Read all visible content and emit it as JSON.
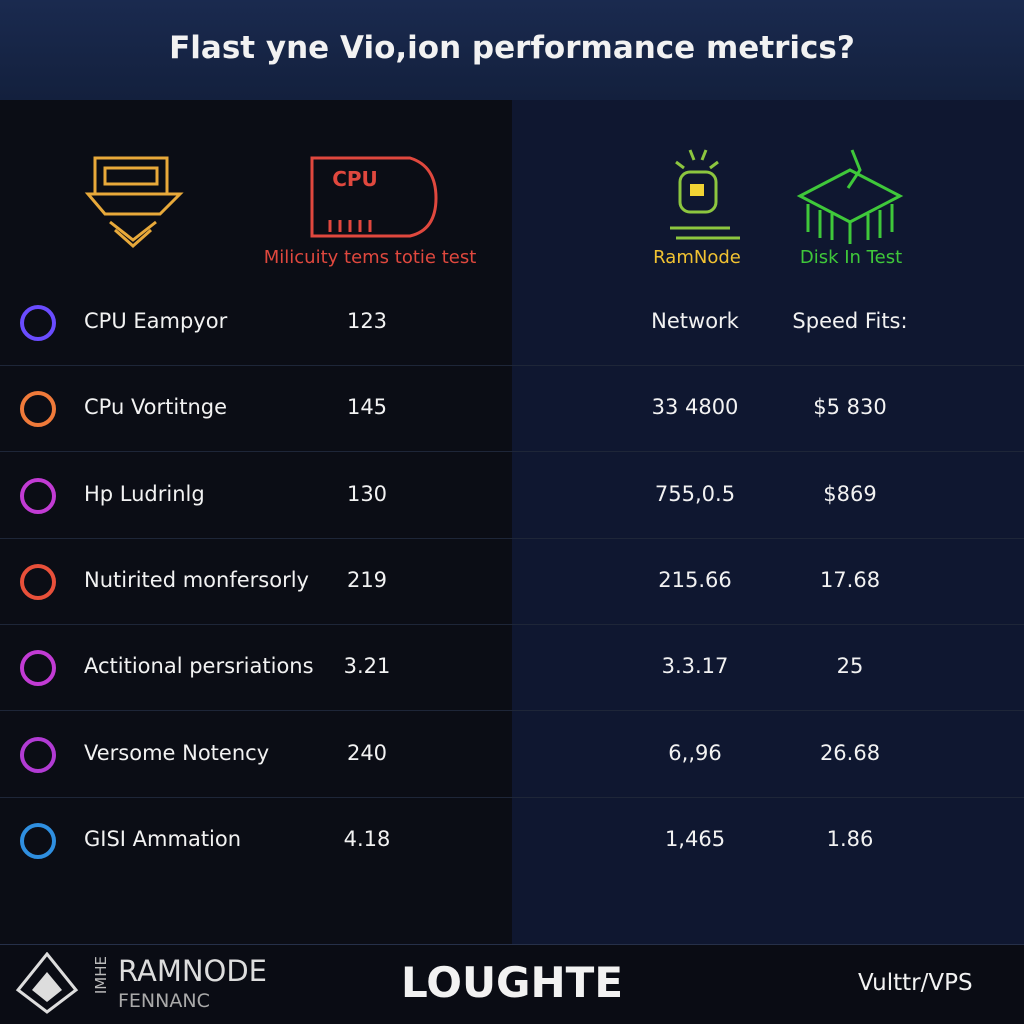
{
  "title": "Flast yne Vio,ion performance metrics?",
  "icons": [
    {
      "text": "CPU",
      "label": "Milicuity tems totie test"
    },
    {
      "label": "RamNode"
    },
    {
      "label": "Disk In Test"
    }
  ],
  "columns": [
    "Network",
    "Speed Fits:"
  ],
  "rows": [
    {
      "label": "CPU Eampyor",
      "value": "123",
      "network": "",
      "speed": ""
    },
    {
      "label": "CPu Vortitnge",
      "value": "145",
      "network": "33 4800",
      "speed": "$5 830"
    },
    {
      "label": "Hp Ludrinlg",
      "value": "130",
      "network": "755,0.5",
      "speed": "$869"
    },
    {
      "label": "Nutirited monfersorly",
      "value": "219",
      "network": "215.66",
      "speed": "17.68"
    },
    {
      "label": "Actitional persriations",
      "value": "3.21",
      "network": "3.3.17",
      "speed": "25"
    },
    {
      "label": "Versome Notency",
      "value": "240",
      "network": "6,,96",
      "speed": "26.68"
    },
    {
      "label": "GISI Ammation",
      "value": "4.18",
      "network": "1,465",
      "speed": "1.86"
    }
  ],
  "footer": {
    "vertical": "IMHE",
    "brand": "RAMNODE",
    "sub": "FENNANC",
    "center": "LOUGHTE",
    "right": "Vulttr/VPS"
  }
}
